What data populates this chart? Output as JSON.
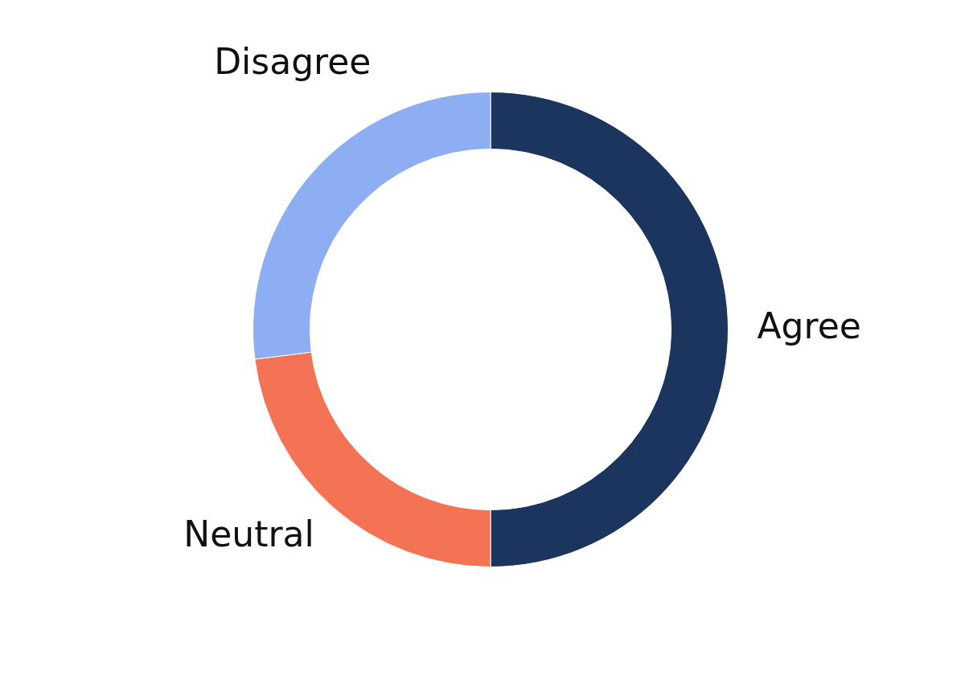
{
  "chart_data": {
    "type": "donut",
    "categories": [
      "Agree",
      "Neutral",
      "Disagree"
    ],
    "values": [
      50,
      23,
      27
    ],
    "colors": [
      "#1c355e",
      "#f37354",
      "#8daef2"
    ],
    "legend": false
  }
}
